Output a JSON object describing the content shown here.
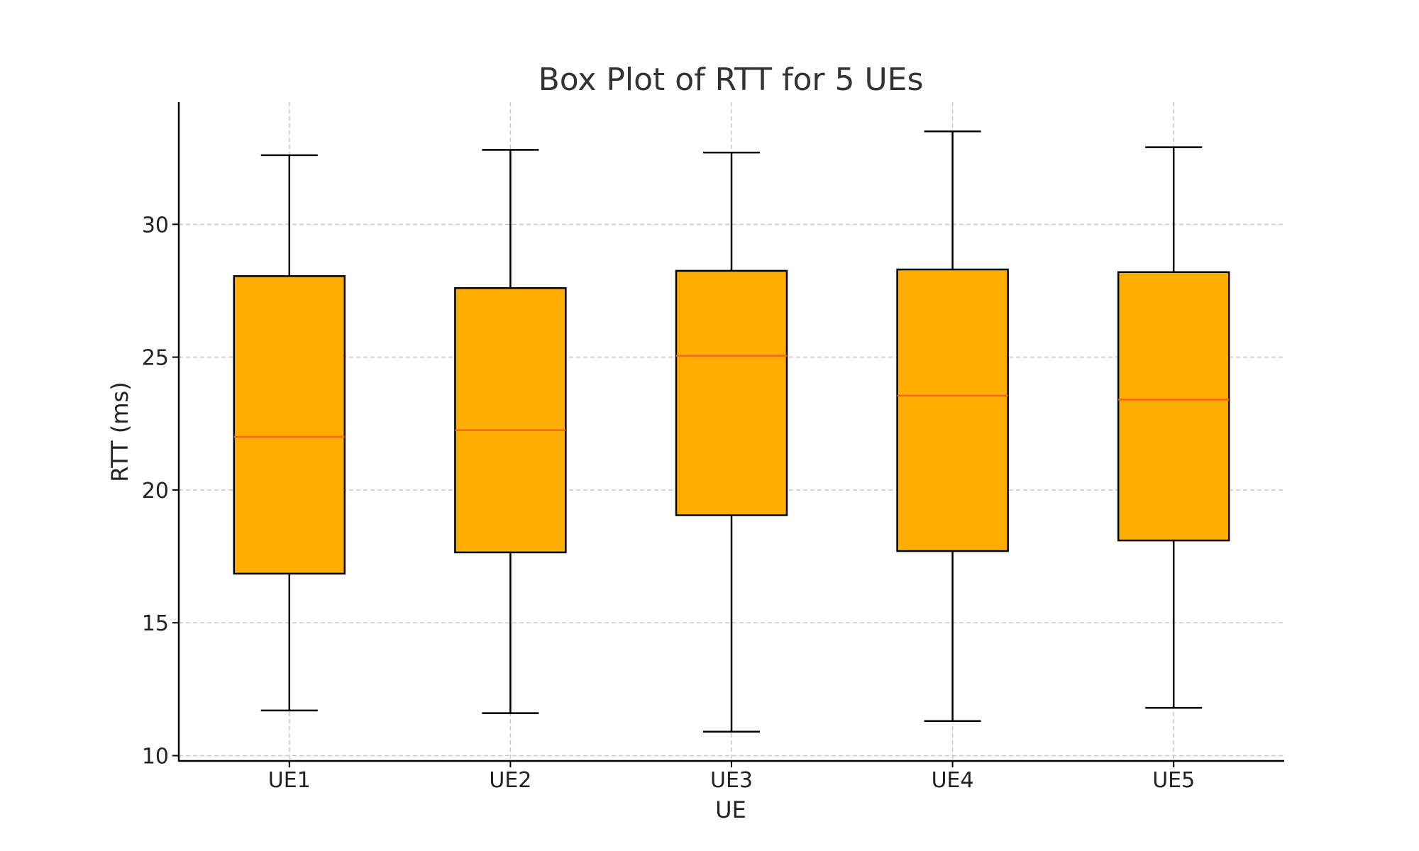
{
  "chart_data": {
    "type": "box",
    "title": "Box Plot of RTT for 5 UEs",
    "xlabel": "UE",
    "ylabel": "RTT (ms)",
    "categories": [
      "UE1",
      "UE2",
      "UE3",
      "UE4",
      "UE5"
    ],
    "boxes": [
      {
        "name": "UE1",
        "whisker_low": 11.7,
        "q1": 16.85,
        "median": 22.0,
        "q3": 28.05,
        "whisker_high": 32.6
      },
      {
        "name": "UE2",
        "whisker_low": 11.6,
        "q1": 17.65,
        "median": 22.25,
        "q3": 27.6,
        "whisker_high": 32.8
      },
      {
        "name": "UE3",
        "whisker_low": 10.9,
        "q1": 19.05,
        "median": 25.05,
        "q3": 28.25,
        "whisker_high": 32.7
      },
      {
        "name": "UE4",
        "whisker_low": 11.3,
        "q1": 17.7,
        "median": 23.55,
        "q3": 28.3,
        "whisker_high": 33.5
      },
      {
        "name": "UE5",
        "whisker_low": 11.8,
        "q1": 18.1,
        "median": 23.4,
        "q3": 28.2,
        "whisker_high": 32.9
      }
    ],
    "yticks": [
      10,
      15,
      20,
      25,
      30
    ],
    "ylim": [
      9.8,
      34.6
    ],
    "grid": true,
    "colors": {
      "box_fill": "#FFAE00",
      "box_edge": "#000000",
      "median": "#F26522",
      "grid": "#c8c8c8",
      "axis": "#000000"
    }
  }
}
